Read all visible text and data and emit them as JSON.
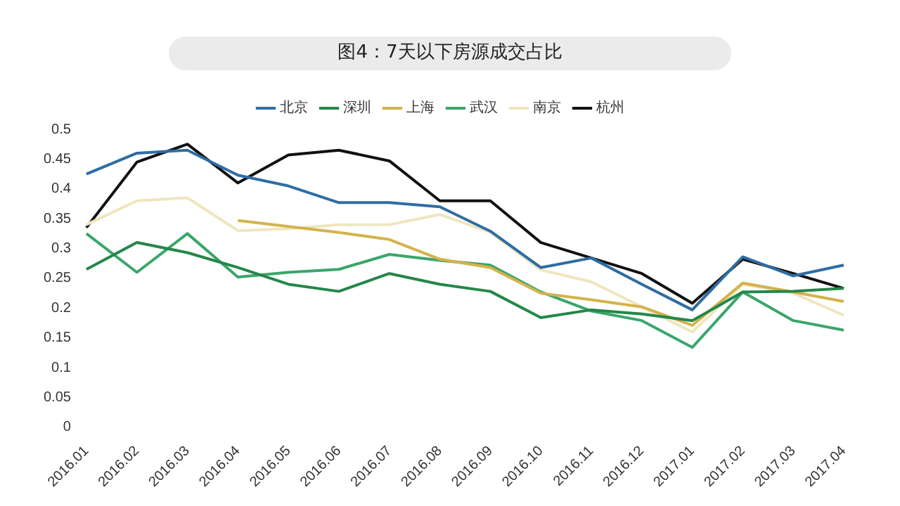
{
  "chart_data": {
    "type": "line",
    "title": "图4：7天以下房源成交占比",
    "categories": [
      "2016.01",
      "2016.02",
      "2016.03",
      "2016.04",
      "2016.05",
      "2016.06",
      "2016.07",
      "2016.08",
      "2016.09",
      "2016.10",
      "2016.11",
      "2016.12",
      "2017.01",
      "2017.02",
      "2017.03",
      "2017.04"
    ],
    "series": [
      {
        "name": "北京",
        "color": "#2e6da4",
        "values": [
          0.425,
          0.46,
          0.465,
          0.423,
          0.405,
          0.377,
          0.377,
          0.37,
          0.329,
          0.268,
          0.284,
          0.24,
          0.197,
          0.286,
          0.254,
          0.272
        ]
      },
      {
        "name": "深圳",
        "color": "#24874a",
        "values": [
          0.265,
          0.31,
          0.293,
          0.268,
          0.24,
          0.228,
          0.258,
          0.24,
          0.228,
          0.184,
          0.197,
          0.19,
          0.179,
          0.227,
          0.228,
          0.233
        ]
      },
      {
        "name": "上海",
        "color": "#d4b24c",
        "values": [
          null,
          null,
          null,
          0.347,
          0.337,
          0.327,
          0.315,
          0.282,
          0.268,
          0.225,
          0.214,
          0.202,
          0.171,
          0.242,
          0.227,
          0.211
        ]
      },
      {
        "name": "武汉",
        "color": "#3aa66a",
        "values": [
          0.325,
          0.26,
          0.325,
          0.252,
          0.26,
          0.265,
          0.29,
          0.28,
          0.272,
          0.227,
          0.195,
          0.179,
          0.134,
          0.227,
          0.179,
          0.163
        ]
      },
      {
        "name": "南京",
        "color": "#efe6bf",
        "values": [
          0.34,
          0.38,
          0.385,
          0.33,
          0.333,
          0.34,
          0.34,
          0.357,
          0.327,
          0.264,
          0.244,
          0.202,
          0.16,
          0.24,
          0.225,
          0.188
        ]
      },
      {
        "name": "杭州",
        "color": "#111111",
        "values": [
          0.335,
          0.445,
          0.475,
          0.41,
          0.457,
          0.465,
          0.447,
          0.38,
          0.38,
          0.31,
          0.284,
          0.258,
          0.208,
          0.282,
          0.258,
          0.233
        ]
      }
    ],
    "ylim": [
      0,
      0.5
    ],
    "yticks": [
      0,
      0.05,
      0.1,
      0.15,
      0.2,
      0.25,
      0.3,
      0.35,
      0.4,
      0.45,
      0.5
    ],
    "grid": false,
    "legend": "top",
    "marker": "none",
    "line_style": "solid"
  }
}
